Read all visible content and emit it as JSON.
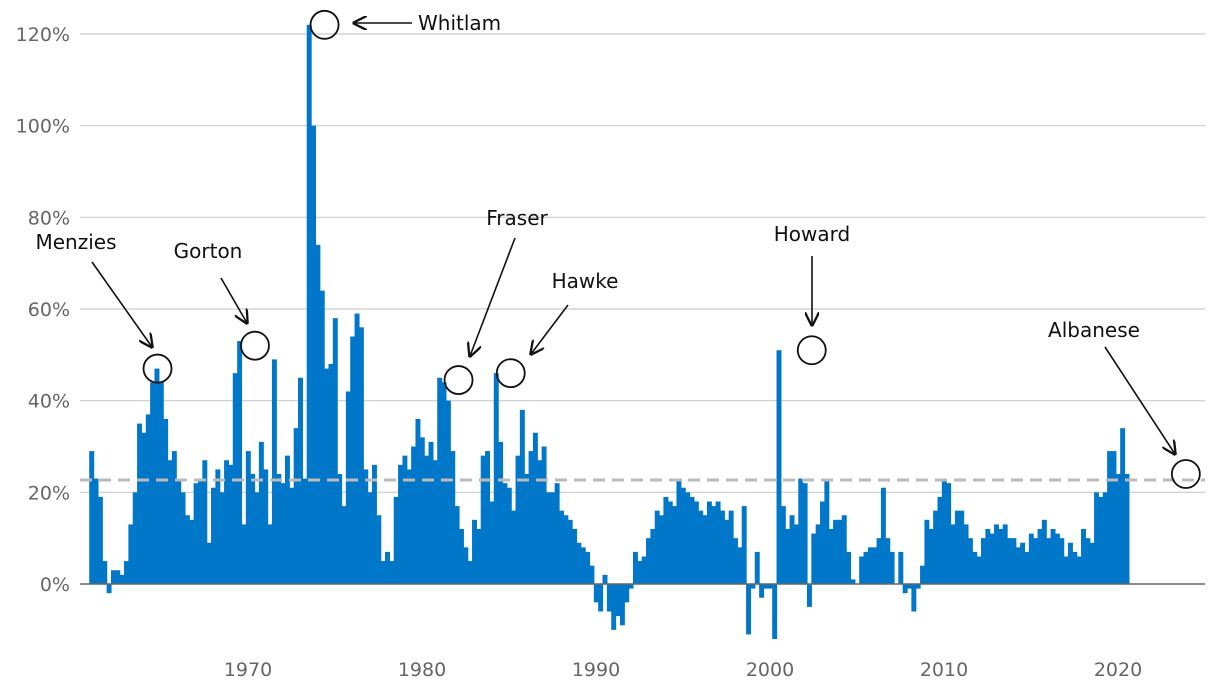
{
  "chart_data": {
    "type": "bar",
    "title": "",
    "xlabel": "",
    "ylabel": "",
    "ylim": [
      -0.15,
      1.25
    ],
    "yticks": [
      0,
      0.2,
      0.4,
      0.6,
      0.8,
      1.0,
      1.2
    ],
    "ytick_labels": [
      "0%",
      "20%",
      "40%",
      "60%",
      "80%",
      "100%",
      "120%"
    ],
    "xlim": [
      1960.0,
      2024.5
    ],
    "xticks": [
      1970,
      1980,
      1990,
      2000,
      2010,
      2020
    ],
    "xtick_labels": [
      "1970",
      "1980",
      "1990",
      "2000",
      "2010",
      "2020"
    ],
    "grid": true,
    "bar_color": "#0077c8",
    "reference_line": {
      "value": 0.227,
      "style": "dashed",
      "color": "#bbbbbb"
    },
    "series": [
      {
        "quarter_start": 1961.0,
        "values": [
          0.29,
          0.23,
          0.19,
          0.05,
          -0.02,
          0.03,
          0.03,
          0.02,
          0.05,
          0.13,
          0.2,
          0.35,
          0.33,
          0.37,
          0.44,
          0.47,
          0.44,
          0.36,
          0.27,
          0.29,
          0.23,
          0.2,
          0.15,
          0.14,
          0.22,
          0.23,
          0.27,
          0.09,
          0.21,
          0.25,
          0.2,
          0.27,
          0.26,
          0.46,
          0.53,
          0.13,
          0.29,
          0.24,
          0.2,
          0.31,
          0.25,
          0.13,
          0.49,
          0.24,
          0.22,
          0.28,
          0.21,
          0.34,
          0.45,
          0.23,
          1.22,
          1.0,
          0.74,
          0.64,
          0.47,
          0.48,
          0.58,
          0.24,
          0.17,
          0.42,
          0.54,
          0.59,
          0.56,
          0.25,
          0.2,
          0.26,
          0.15,
          0.05,
          0.07,
          0.05,
          0.19,
          0.26,
          0.28,
          0.25,
          0.3,
          0.36,
          0.32,
          0.28,
          0.31,
          0.27,
          0.45,
          0.44,
          0.4,
          0.29,
          0.17,
          0.12,
          0.08,
          0.05,
          0.14,
          0.12,
          0.28,
          0.29,
          0.18,
          0.46,
          0.31,
          0.22,
          0.21,
          0.16,
          0.28,
          0.38,
          0.24,
          0.29,
          0.33,
          0.27,
          0.3,
          0.2,
          0.2,
          0.22,
          0.16,
          0.15,
          0.14,
          0.12,
          0.09,
          0.08,
          0.07,
          0.04,
          -0.04,
          -0.06,
          0.02,
          -0.06,
          -0.1,
          -0.07,
          -0.09,
          -0.04,
          -0.01,
          0.07,
          0.05,
          0.06,
          0.1,
          0.12,
          0.16,
          0.15,
          0.19,
          0.18,
          0.17,
          0.23,
          0.21,
          0.2,
          0.19,
          0.18,
          0.16,
          0.15,
          0.18,
          0.17,
          0.18,
          0.16,
          0.14,
          0.16,
          0.1,
          0.08,
          0.17,
          -0.11,
          -0.01,
          0.07,
          -0.03,
          -0.01,
          -0.01,
          -0.12,
          0.51,
          0.17,
          0.12,
          0.15,
          0.13,
          0.23,
          0.22,
          -0.05,
          0.11,
          0.13,
          0.18,
          0.23,
          0.12,
          0.14,
          0.14,
          0.15,
          0.07,
          0.01,
          0.0,
          0.06,
          0.07,
          0.08,
          0.08,
          0.1,
          0.21,
          0.1,
          0.07,
          0.0,
          0.07,
          -0.02,
          -0.01,
          -0.06,
          -0.01,
          0.04,
          0.14,
          0.12,
          0.16,
          0.19,
          0.23,
          0.22,
          0.13,
          0.16,
          0.16,
          0.13,
          0.1,
          0.07,
          0.06,
          0.1,
          0.12,
          0.11,
          0.13,
          0.12,
          0.13,
          0.1,
          0.1,
          0.08,
          0.09,
          0.07,
          0.11,
          0.1,
          0.12,
          0.14,
          0.1,
          0.12,
          0.11,
          0.1,
          0.06,
          0.09,
          0.07,
          0.06,
          0.12,
          0.1,
          0.09,
          0.2,
          0.19,
          0.2,
          0.29,
          0.29,
          0.24,
          0.34,
          0.24
        ]
      }
    ],
    "annotations": [
      {
        "label": "Whitlam",
        "x": 1974.4,
        "y": 1.22
      },
      {
        "label": "Menzies",
        "x": 1964.8,
        "y": 0.47
      },
      {
        "label": "Gorton",
        "x": 1970.4,
        "y": 0.52
      },
      {
        "label": "Fraser",
        "x": 1982.1,
        "y": 0.445
      },
      {
        "label": "Hawke",
        "x": 1985.1,
        "y": 0.46
      },
      {
        "label": "Howard",
        "x": 2002.4,
        "y": 0.51
      },
      {
        "label": "Albanese",
        "x": 2023.9,
        "y": 0.24
      }
    ]
  }
}
